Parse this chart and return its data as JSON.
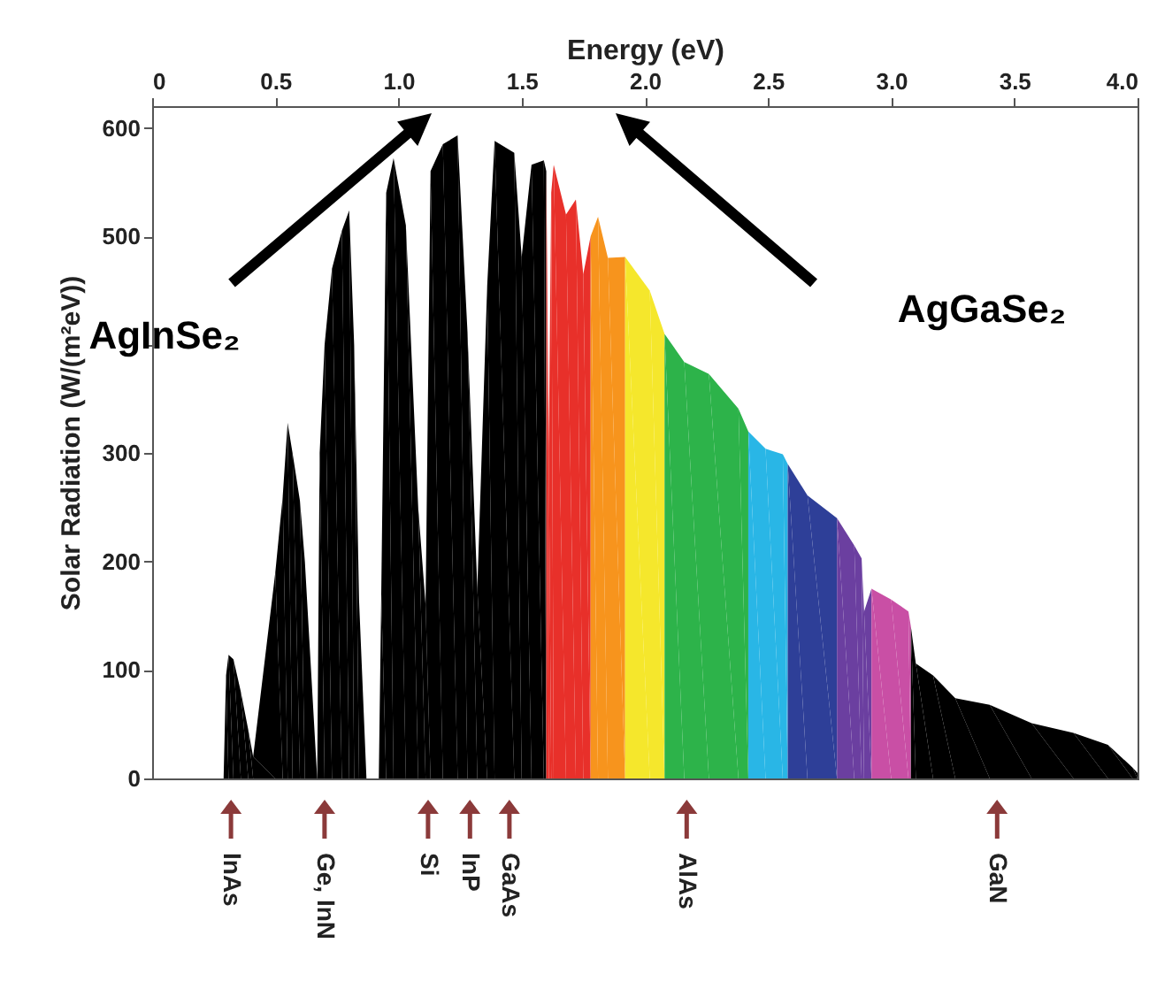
{
  "chart_data": {
    "type": "area",
    "xlabel": "Energy (eV)",
    "ylabel": "Solar Radiation (W/(m²eV))",
    "xlim": [
      0,
      4.0
    ],
    "ylim": [
      0,
      620
    ],
    "xticks": [
      0,
      0.5,
      {
        "value": 1,
        "label": "1.0"
      },
      1.5,
      {
        "value": 2,
        "label": "2.0"
      },
      2.5,
      {
        "value": 3,
        "label": "3.0"
      },
      3.5,
      {
        "value": 4,
        "label": "4.0"
      }
    ],
    "yticks": [
      0,
      100,
      200,
      300,
      {
        "value": 400,
        "label": null
      },
      500,
      600
    ],
    "grid": false,
    "series": [
      {
        "color": "#000000",
        "x": [
          0.29,
          0.3,
          0.31,
          0.33,
          0.36,
          0.39,
          0.41,
          0.41,
          0.5,
          0.5,
          0.53,
          0.55,
          0.57,
          0.6,
          0.62,
          0.62,
          0.67,
          0.68,
          0.7,
          0.73,
          0.77,
          0.8,
          0.82,
          0.84,
          0.87,
          0.92,
          0.93,
          0.95,
          0.98,
          1.03,
          1.08,
          1.11,
          1.13,
          1.18,
          1.24,
          1.28,
          1.32,
          1.36,
          1.39,
          1.47,
          1.5,
          1.54,
          1.59,
          1.6
        ],
        "values": [
          0,
          95,
          114,
          110,
          80,
          45,
          20,
          0,
          0,
          190,
          260,
          328,
          300,
          256,
          200,
          0,
          0,
          300,
          400,
          470,
          505,
          524,
          400,
          164,
          0,
          0,
          170,
          540,
          572,
          510,
          250,
          160,
          560,
          585,
          593,
          412,
          175,
          454,
          588,
          577,
          481,
          566,
          570,
          560
        ]
      },
      {
        "color": "#e8302a",
        "x": [
          1.6,
          1.61,
          1.62,
          1.63,
          1.68,
          1.72,
          1.75,
          1.78
        ],
        "values": [
          560,
          304,
          540,
          566,
          520,
          534,
          465,
          500
        ]
      },
      {
        "color": "#f7941d",
        "x": [
          1.78,
          1.81,
          1.85,
          1.92
        ],
        "values": [
          500,
          518,
          480,
          481
        ]
      },
      {
        "color": "#f5e72c",
        "x": [
          1.92,
          2.02,
          2.08
        ],
        "values": [
          481,
          450,
          410
        ]
      },
      {
        "color": "#2db34a",
        "x": [
          2.08,
          2.16,
          2.26,
          2.38,
          2.42
        ],
        "values": [
          410,
          384,
          373,
          341,
          320
        ]
      },
      {
        "color": "#29b6e6",
        "x": [
          2.42,
          2.49,
          2.56,
          2.58
        ],
        "values": [
          320,
          304,
          299,
          290
        ]
      },
      {
        "color": "#2e3f98",
        "x": [
          2.58,
          2.66,
          2.78
        ],
        "values": [
          290,
          261,
          240
        ]
      },
      {
        "color": "#6b3fa0",
        "x": [
          2.78,
          2.85,
          2.88,
          2.89,
          2.92
        ],
        "values": [
          240,
          215,
          203,
          154,
          175
        ]
      },
      {
        "color": "#c94fa5",
        "x": [
          2.92,
          3.0,
          3.07,
          3.08
        ],
        "values": [
          175,
          165,
          154,
          140
        ]
      },
      {
        "color": "#000000",
        "x": [
          3.08,
          3.1,
          3.17,
          3.26,
          3.4,
          3.57,
          3.74,
          3.88,
          3.98,
          4.0
        ],
        "values": [
          140,
          106,
          95,
          74,
          68,
          51,
          42,
          31,
          10,
          5
        ]
      }
    ],
    "annotations": [
      "AgInSe₂",
      "AgGaSe₂",
      {
        "text": "InAs",
        "x": 0.32,
        "y": 0
      },
      {
        "text": "Ge, InN",
        "x": 0.7,
        "y": 0
      },
      {
        "text": "Si",
        "x": 1.12,
        "y": 0
      },
      {
        "text": "InP",
        "x": 1.29,
        "y": 0
      },
      {
        "text": "GaAs",
        "x": 1.45,
        "y": 0
      },
      {
        "text": "AlAs",
        "x": 2.17,
        "y": 0
      },
      {
        "text": "GaN",
        "x": 3.43,
        "y": 0
      }
    ]
  }
}
